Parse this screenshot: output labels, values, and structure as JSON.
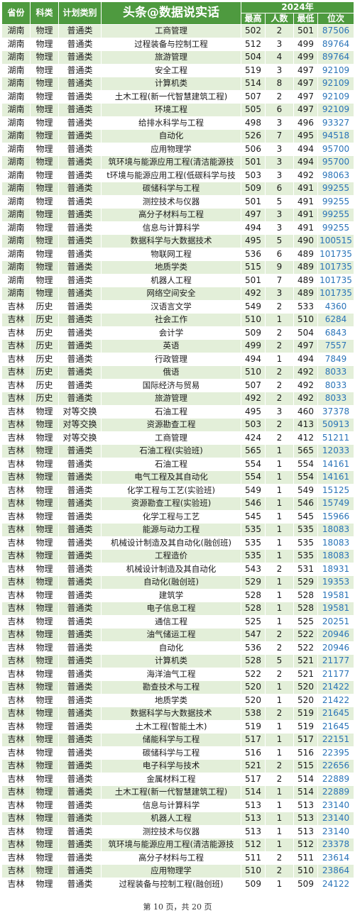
{
  "header": {
    "province": "省份",
    "subject": "科类",
    "plan": "计划类别",
    "title": "头条@数据说实话",
    "year": "2024年",
    "max": "最高",
    "count": "人数",
    "min": "最低",
    "rank": "位次"
  },
  "rows": [
    [
      "湖南",
      "物理",
      "普通类",
      "工商管理",
      "502",
      "2",
      "501",
      "87506"
    ],
    [
      "湖南",
      "物理",
      "普通类",
      "过程装备与控制工程",
      "512",
      "3",
      "499",
      "89764"
    ],
    [
      "湖南",
      "物理",
      "普通类",
      "旅游管理",
      "504",
      "4",
      "499",
      "89764"
    ],
    [
      "湖南",
      "物理",
      "普通类",
      "安全工程",
      "519",
      "3",
      "497",
      "92109"
    ],
    [
      "湖南",
      "物理",
      "普通类",
      "计算机类",
      "514",
      "8",
      "497",
      "92109"
    ],
    [
      "湖南",
      "物理",
      "普通类",
      "土木工程(新一代智慧建筑工程)",
      "507",
      "2",
      "497",
      "92109"
    ],
    [
      "湖南",
      "物理",
      "普通类",
      "环境工程",
      "505",
      "6",
      "497",
      "92109"
    ],
    [
      "湖南",
      "物理",
      "普通类",
      "给排水科学与工程",
      "498",
      "3",
      "496",
      "93327"
    ],
    [
      "湖南",
      "物理",
      "普通类",
      "自动化",
      "526",
      "7",
      "495",
      "94518"
    ],
    [
      "湖南",
      "物理",
      "普通类",
      "应用物理学",
      "506",
      "3",
      "494",
      "95700"
    ],
    [
      "湖南",
      "物理",
      "普通类",
      "筑环境与能源应用工程(清洁能源技",
      "501",
      "3",
      "494",
      "95700"
    ],
    [
      "湖南",
      "物理",
      "普通类",
      "t环境与能源应用工程(低碳科学与技",
      "503",
      "3",
      "492",
      "98063"
    ],
    [
      "湖南",
      "物理",
      "普通类",
      "碳储科学与工程",
      "509",
      "6",
      "491",
      "99255"
    ],
    [
      "湖南",
      "物理",
      "普通类",
      "测控技术与仪器",
      "501",
      "5",
      "491",
      "99255"
    ],
    [
      "湖南",
      "物理",
      "普通类",
      "高分子材料与工程",
      "497",
      "3",
      "491",
      "99255"
    ],
    [
      "湖南",
      "物理",
      "普通类",
      "信息与计算科学",
      "494",
      "3",
      "491",
      "99255"
    ],
    [
      "湖南",
      "物理",
      "普通类",
      "数据科学与大数据技术",
      "495",
      "5",
      "490",
      "100515"
    ],
    [
      "湖南",
      "物理",
      "普通类",
      "物联网工程",
      "536",
      "6",
      "489",
      "101735"
    ],
    [
      "湖南",
      "物理",
      "普通类",
      "地质学类",
      "515",
      "9",
      "489",
      "101735"
    ],
    [
      "湖南",
      "物理",
      "普通类",
      "机器人工程",
      "501",
      "7",
      "489",
      "101735"
    ],
    [
      "湖南",
      "物理",
      "普通类",
      "网络空间安全",
      "492",
      "3",
      "489",
      "101735"
    ],
    [
      "吉林",
      "历史",
      "普通类",
      "汉语言文学",
      "549",
      "2",
      "533",
      "4360"
    ],
    [
      "吉林",
      "历史",
      "普通类",
      "社会工作",
      "510",
      "1",
      "510",
      "6284"
    ],
    [
      "吉林",
      "历史",
      "普通类",
      "会计学",
      "509",
      "2",
      "504",
      "6843"
    ],
    [
      "吉林",
      "历史",
      "普通类",
      "英语",
      "499",
      "2",
      "497",
      "7557"
    ],
    [
      "吉林",
      "历史",
      "普通类",
      "行政管理",
      "494",
      "1",
      "494",
      "7849"
    ],
    [
      "吉林",
      "历史",
      "普通类",
      "俄语",
      "510",
      "2",
      "492",
      "8033"
    ],
    [
      "吉林",
      "历史",
      "普通类",
      "国际经济与贸易",
      "507",
      "2",
      "492",
      "8033"
    ],
    [
      "吉林",
      "历史",
      "普通类",
      "旅游管理",
      "492",
      "2",
      "492",
      "8033"
    ],
    [
      "吉林",
      "物理",
      "对等交换",
      "石油工程",
      "495",
      "3",
      "460",
      "37378"
    ],
    [
      "吉林",
      "物理",
      "对等交换",
      "资源勘查工程",
      "503",
      "2",
      "413",
      "50913"
    ],
    [
      "吉林",
      "物理",
      "对等交换",
      "工商管理",
      "424",
      "2",
      "412",
      "51211"
    ],
    [
      "吉林",
      "物理",
      "普通类",
      "石油工程(实验班)",
      "565",
      "1",
      "565",
      "12033"
    ],
    [
      "吉林",
      "物理",
      "普通类",
      "石油工程",
      "554",
      "1",
      "554",
      "14161"
    ],
    [
      "吉林",
      "物理",
      "普通类",
      "电气工程及其自动化",
      "554",
      "1",
      "554",
      "14161"
    ],
    [
      "吉林",
      "物理",
      "普通类",
      "化学工程与工艺(实验班)",
      "549",
      "1",
      "549",
      "15125"
    ],
    [
      "吉林",
      "物理",
      "普通类",
      "资源勘查工程(实验班)",
      "546",
      "1",
      "546",
      "15749"
    ],
    [
      "吉林",
      "物理",
      "普通类",
      "化学工程与工艺",
      "545",
      "1",
      "545",
      "15966"
    ],
    [
      "吉林",
      "物理",
      "普通类",
      "能源与动力工程",
      "535",
      "1",
      "535",
      "18083"
    ],
    [
      "吉林",
      "物理",
      "普通类",
      "机械设计制造及其自动化(融创班)",
      "535",
      "1",
      "535",
      "18083"
    ],
    [
      "吉林",
      "物理",
      "普通类",
      "工程造价",
      "535",
      "1",
      "535",
      "18083"
    ],
    [
      "吉林",
      "物理",
      "普通类",
      "机械设计制造及其自动化",
      "543",
      "2",
      "531",
      "18931"
    ],
    [
      "吉林",
      "物理",
      "普通类",
      "自动化(融创班)",
      "529",
      "1",
      "529",
      "19353"
    ],
    [
      "吉林",
      "物理",
      "普通类",
      "建筑学",
      "528",
      "1",
      "528",
      "19581"
    ],
    [
      "吉林",
      "物理",
      "普通类",
      "电子信息工程",
      "528",
      "1",
      "528",
      "19581"
    ],
    [
      "吉林",
      "物理",
      "普通类",
      "通信工程",
      "525",
      "1",
      "525",
      "20251"
    ],
    [
      "吉林",
      "物理",
      "普通类",
      "油气储运工程",
      "547",
      "2",
      "522",
      "20946"
    ],
    [
      "吉林",
      "物理",
      "普通类",
      "自动化",
      "536",
      "2",
      "522",
      "20946"
    ],
    [
      "吉林",
      "物理",
      "普通类",
      "计算机类",
      "528",
      "5",
      "521",
      "21177"
    ],
    [
      "吉林",
      "物理",
      "普通类",
      "海洋油气工程",
      "522",
      "2",
      "521",
      "21177"
    ],
    [
      "吉林",
      "物理",
      "普通类",
      "勘查技术与工程",
      "520",
      "1",
      "520",
      "21422"
    ],
    [
      "吉林",
      "物理",
      "普通类",
      "地质学类",
      "520",
      "1",
      "520",
      "21422"
    ],
    [
      "吉林",
      "物理",
      "普通类",
      "数据科学与大数据技术",
      "538",
      "2",
      "519",
      "21645"
    ],
    [
      "吉林",
      "物理",
      "普通类",
      "土木工程(智能土木)",
      "519",
      "1",
      "519",
      "21645"
    ],
    [
      "吉林",
      "物理",
      "普通类",
      "储能科学与工程",
      "517",
      "1",
      "517",
      "22151"
    ],
    [
      "吉林",
      "物理",
      "普通类",
      "碳储科学与工程",
      "516",
      "1",
      "516",
      "22395"
    ],
    [
      "吉林",
      "物理",
      "普通类",
      "电子科学与技术",
      "521",
      "2",
      "515",
      "22656"
    ],
    [
      "吉林",
      "物理",
      "普通类",
      "金属材料工程",
      "517",
      "2",
      "514",
      "22889"
    ],
    [
      "吉林",
      "物理",
      "普通类",
      "土木工程(新一代智慧建筑工程)",
      "514",
      "1",
      "514",
      "22889"
    ],
    [
      "吉林",
      "物理",
      "普通类",
      "信息与计算科学",
      "513",
      "1",
      "513",
      "23140"
    ],
    [
      "吉林",
      "物理",
      "普通类",
      "机器人工程",
      "513",
      "1",
      "513",
      "23140"
    ],
    [
      "吉林",
      "物理",
      "普通类",
      "测控技术与仪器",
      "513",
      "1",
      "513",
      "23140"
    ],
    [
      "吉林",
      "物理",
      "普通类",
      "筑环境与能源应用工程(清洁能源技",
      "512",
      "1",
      "512",
      "23378"
    ],
    [
      "吉林",
      "物理",
      "普通类",
      "高分子材料与工程",
      "511",
      "2",
      "511",
      "23614"
    ],
    [
      "吉林",
      "物理",
      "普通类",
      "应用物理学",
      "510",
      "2",
      "510",
      "23864"
    ],
    [
      "吉林",
      "物理",
      "普通类",
      "过程装备与控制工程(融创班)",
      "509",
      "1",
      "509",
      "24122"
    ]
  ],
  "footer": "第 10 页，共 20 页"
}
